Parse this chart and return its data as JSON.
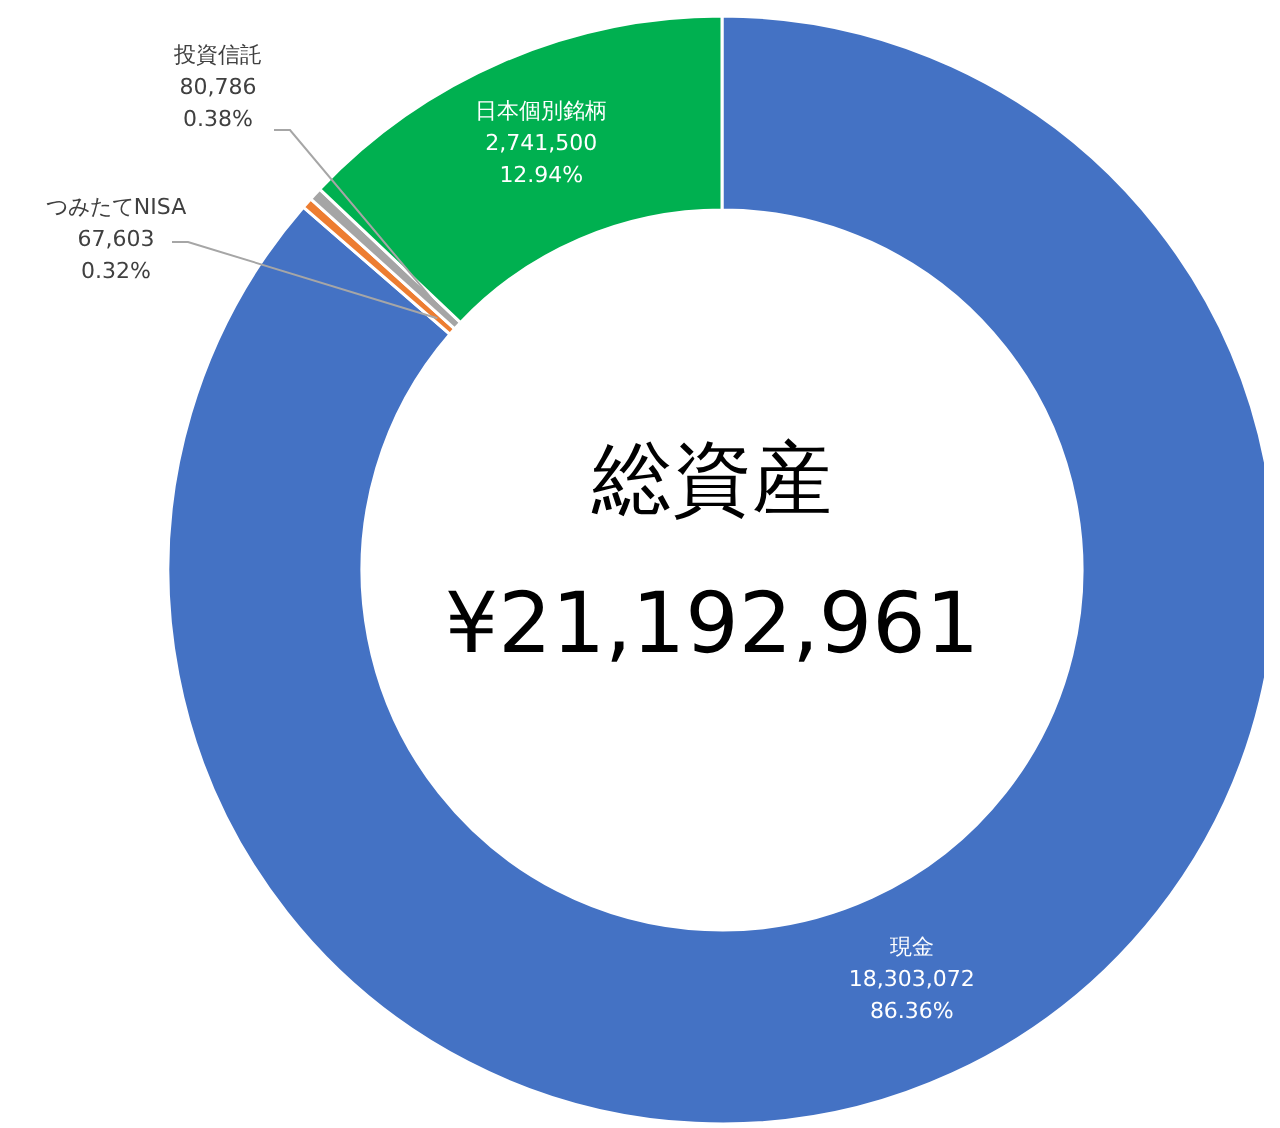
{
  "chart_data": {
    "type": "donut",
    "categories": [
      "現金",
      "つみたてNISA",
      "投資信託",
      "日本個別銘柄"
    ],
    "values": [
      18303072,
      67603,
      80786,
      2741500
    ],
    "colors": [
      "#4472c4",
      "#ed7d31",
      "#a5a5a5",
      "#00b050"
    ],
    "value_labels": [
      "18,303,072\n86.36%",
      "67,603\n0.32%",
      "80,786\n0.38%",
      "2,741,500\n12.94%"
    ],
    "annotations": [
      "総資産",
      "¥21,192,961"
    ]
  }
}
